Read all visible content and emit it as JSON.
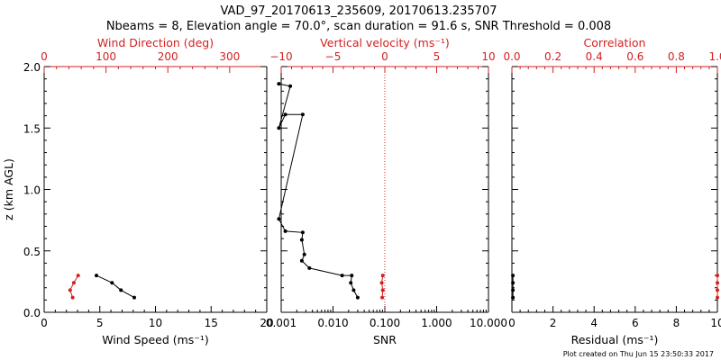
{
  "header": {
    "title_line1": "VAD_97_20170613_235609, 20170613.235707",
    "title_line2": "Nbeams = 8, Elevation angle = 70.0°, scan duration = 91.6 s, SNR Threshold = 0.008"
  },
  "footer": {
    "text": "Plot created on Thu Jun 15 23:50:33 2017"
  },
  "colors": {
    "axis_black": "#000000",
    "secondary_red": "#d42020"
  },
  "chart_data": [
    {
      "type": "line",
      "id": "wind",
      "ylabel": "z (km AGL)",
      "ylim": [
        0,
        2.0
      ],
      "yticks": [
        0.0,
        0.5,
        1.0,
        1.5,
        2.0
      ],
      "ytick_labels": [
        "0.0",
        "0.5",
        "1.0",
        "1.5",
        "2.0"
      ],
      "bottom_axis": {
        "label": "Wind Speed (ms⁻¹)",
        "range": [
          0,
          20
        ],
        "ticks": [
          0,
          5,
          10,
          15,
          20
        ],
        "tick_labels": [
          "0",
          "5",
          "10",
          "15",
          "20"
        ]
      },
      "top_axis": {
        "label": "Wind Direction (deg)",
        "range": [
          0,
          360
        ],
        "ticks": [
          0,
          100,
          200,
          300
        ],
        "tick_labels": [
          "0",
          "100",
          "200",
          "300"
        ]
      },
      "series": [
        {
          "axis": "bottom",
          "color": "#000000",
          "x": [
            4.7,
            6.1,
            6.9,
            8.1
          ],
          "y": [
            0.3,
            0.24,
            0.18,
            0.12
          ]
        },
        {
          "axis": "top",
          "color": "#d42020",
          "x": [
            55,
            48,
            42,
            46
          ],
          "y": [
            0.3,
            0.24,
            0.18,
            0.12
          ]
        }
      ]
    },
    {
      "type": "line",
      "id": "snr",
      "bottom_axis": {
        "label": "SNR",
        "scale": "log",
        "range": [
          0.001,
          10.0
        ],
        "ticks": [
          0.001,
          0.01,
          0.1,
          1.0,
          10.0
        ],
        "tick_labels": [
          "0.001",
          "0.010",
          "0.100",
          "1.000",
          "10.000"
        ]
      },
      "top_axis": {
        "label": "Vertical velocity (ms⁻¹)",
        "range": [
          -10,
          10
        ],
        "ticks": [
          -10,
          -5,
          0,
          5,
          10
        ],
        "tick_labels": [
          "−10",
          "−5",
          "0",
          "5",
          "10"
        ]
      },
      "series": [
        {
          "axis": "bottom",
          "color": "#000000",
          "x": [
            0.03,
            0.025,
            0.022,
            0.023,
            0.015,
            0.0035,
            0.0025,
            0.0028,
            0.0025,
            0.0026,
            0.0012,
            0.0009,
            0.0026,
            0.0012,
            0.0009,
            0.0015,
            0.0009
          ],
          "y": [
            0.12,
            0.18,
            0.24,
            0.3,
            0.3,
            0.36,
            0.42,
            0.47,
            0.59,
            0.65,
            0.66,
            0.76,
            1.61,
            1.61,
            1.5,
            1.84,
            1.86
          ]
        },
        {
          "axis": "top",
          "color": "#d42020",
          "x": [
            -0.2,
            -0.3,
            -0.2,
            -0.25
          ],
          "y": [
            0.3,
            0.24,
            0.18,
            0.12
          ]
        }
      ]
    },
    {
      "type": "line",
      "id": "residual",
      "bottom_axis": {
        "label": "Residual (ms⁻¹)",
        "range": [
          0,
          10
        ],
        "ticks": [
          0,
          2,
          4,
          6,
          8,
          10
        ],
        "tick_labels": [
          "0",
          "2",
          "4",
          "6",
          "8",
          "10"
        ]
      },
      "top_axis": {
        "label": "Correlation",
        "range": [
          0.0,
          1.0
        ],
        "ticks": [
          0.0,
          0.2,
          0.4,
          0.6,
          0.8,
          1.0
        ],
        "tick_labels": [
          "0.0",
          "0.2",
          "0.4",
          "0.6",
          "0.8",
          "1.0"
        ]
      },
      "series": [
        {
          "axis": "bottom",
          "color": "#000000",
          "x": [
            0.05,
            0.05,
            0.05,
            0.05
          ],
          "y": [
            0.3,
            0.24,
            0.18,
            0.12
          ]
        },
        {
          "axis": "top",
          "color": "#d42020",
          "x": [
            1.0,
            1.0,
            1.0,
            1.0
          ],
          "y": [
            0.3,
            0.24,
            0.18,
            0.12
          ]
        }
      ]
    }
  ]
}
